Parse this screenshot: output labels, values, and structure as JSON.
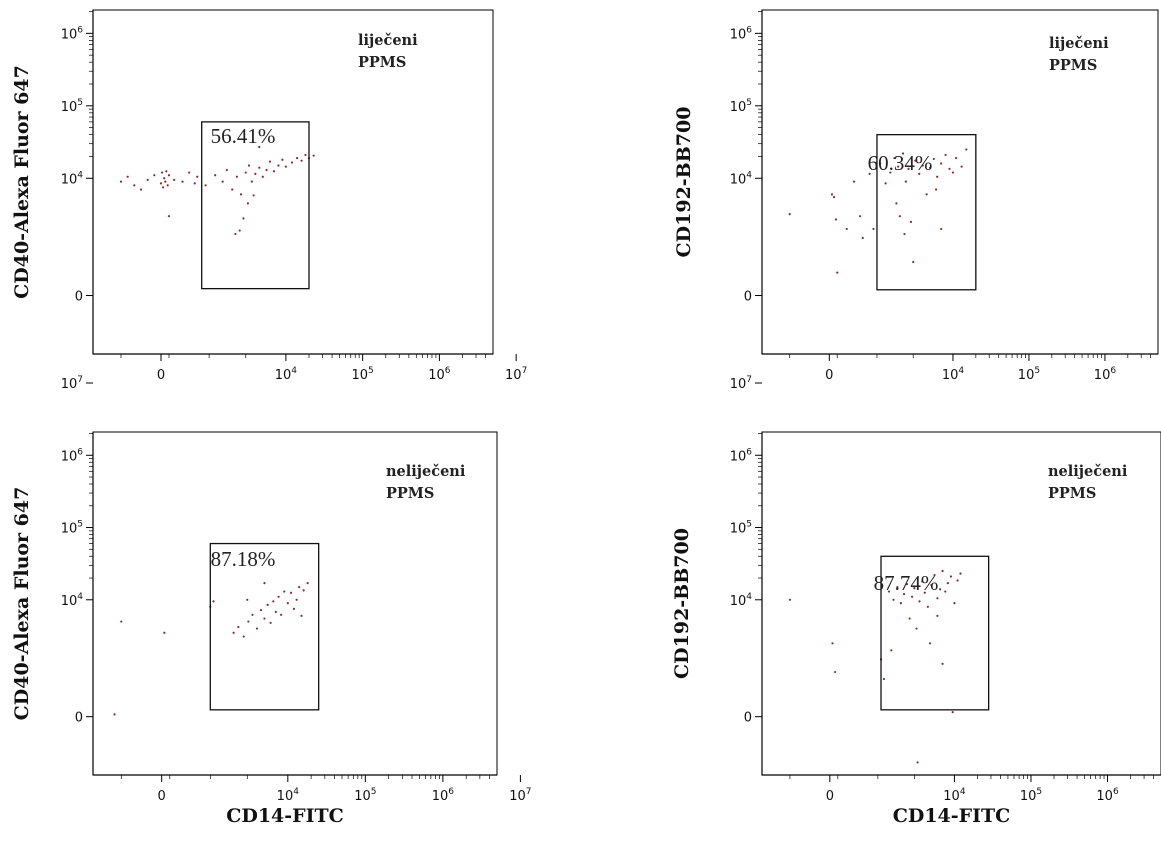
{
  "chart_data": [
    {
      "type": "scatter",
      "panel": "top-left",
      "ylabel": "CD40-Alexa Fluor 647",
      "xlabel": "",
      "annotation": [
        "liječeni",
        "PPMS"
      ],
      "gate_label": "56.41%",
      "gate": {
        "x": [
          800,
          20000
        ],
        "y": [
          300,
          60000
        ]
      },
      "scale": "biexponential",
      "x_ticks": [
        {
          "base": "0",
          "exp": ""
        },
        {
          "base": "10",
          "exp": "4"
        },
        {
          "base": "10",
          "exp": "5"
        },
        {
          "base": "10",
          "exp": "6"
        },
        {
          "base": "10",
          "exp": "7"
        }
      ],
      "y_ticks": [
        {
          "base": "0",
          "exp": ""
        },
        {
          "base": "10",
          "exp": "4"
        },
        {
          "base": "10",
          "exp": "5"
        },
        {
          "base": "10",
          "exp": "6"
        },
        {
          "base": "10",
          "exp": "7"
        }
      ],
      "points": [
        [
          -300,
          9000
        ],
        [
          -250,
          10500
        ],
        [
          -200,
          8000
        ],
        [
          -150,
          7000
        ],
        [
          -100,
          9500
        ],
        [
          -50,
          11000
        ],
        [
          0,
          8500
        ],
        [
          40,
          12000
        ],
        [
          80,
          7500
        ],
        [
          120,
          10000
        ],
        [
          160,
          9000
        ],
        [
          200,
          12500
        ],
        [
          250,
          8000
        ],
        [
          300,
          11000
        ],
        [
          350,
          9500
        ],
        [
          450,
          9000
        ],
        [
          550,
          12000
        ],
        [
          650,
          8500
        ],
        [
          700,
          10500
        ],
        [
          300,
          3000
        ],
        [
          900,
          8000
        ],
        [
          1200,
          11000
        ],
        [
          1500,
          9000
        ],
        [
          1700,
          13000
        ],
        [
          2000,
          7000
        ],
        [
          2300,
          10500
        ],
        [
          2600,
          6000
        ],
        [
          3000,
          12000
        ],
        [
          3300,
          15000
        ],
        [
          3600,
          9000
        ],
        [
          4000,
          11500
        ],
        [
          4500,
          14000
        ],
        [
          5000,
          10500
        ],
        [
          5600,
          13000
        ],
        [
          6200,
          17000
        ],
        [
          7000,
          12500
        ],
        [
          8000,
          15000
        ],
        [
          9000,
          18000
        ],
        [
          10000,
          14500
        ],
        [
          12000,
          16500
        ],
        [
          14000,
          19000
        ],
        [
          16000,
          17500
        ],
        [
          18000,
          21000
        ],
        [
          20000,
          19000
        ],
        [
          23000,
          20500
        ],
        [
          2200,
          1700
        ],
        [
          2500,
          1900
        ],
        [
          2800,
          2800
        ],
        [
          3200,
          4500
        ],
        [
          3800,
          5800
        ],
        [
          4500,
          27000
        ]
      ]
    },
    {
      "type": "scatter",
      "panel": "top-right",
      "ylabel": "CD192-BB700",
      "xlabel": "",
      "annotation": [
        "liječeni",
        "PPMS"
      ],
      "gate_label": "60.34%",
      "gate": {
        "x": [
          1000,
          20000
        ],
        "y": [
          250,
          40000
        ]
      },
      "scale": "biexponential",
      "x_ticks": [
        {
          "base": "0",
          "exp": ""
        },
        {
          "base": "10",
          "exp": "4"
        },
        {
          "base": "10",
          "exp": "5"
        },
        {
          "base": "10",
          "exp": "6"
        },
        {
          "base": "10",
          "exp": "7"
        }
      ],
      "y_ticks": [
        {
          "base": "0",
          "exp": ""
        },
        {
          "base": "10",
          "exp": "4"
        },
        {
          "base": "10",
          "exp": "5"
        },
        {
          "base": "10",
          "exp": "6"
        },
        {
          "base": "10",
          "exp": "7"
        }
      ],
      "points": [
        [
          -300,
          3200
        ],
        [
          100,
          6000
        ],
        [
          180,
          5500
        ],
        [
          250,
          2700
        ],
        [
          300,
          500
        ],
        [
          400,
          2000
        ],
        [
          500,
          9000
        ],
        [
          600,
          3000
        ],
        [
          650,
          1500
        ],
        [
          800,
          11500
        ],
        [
          900,
          2000
        ],
        [
          1100,
          16000
        ],
        [
          1300,
          8500
        ],
        [
          1500,
          12000
        ],
        [
          1700,
          19000
        ],
        [
          1900,
          14500
        ],
        [
          2000,
          3000
        ],
        [
          2200,
          22000
        ],
        [
          2400,
          9000
        ],
        [
          2600,
          13500
        ],
        [
          2800,
          2500
        ],
        [
          3200,
          17500
        ],
        [
          3600,
          11500
        ],
        [
          4000,
          15000
        ],
        [
          4500,
          6000
        ],
        [
          5000,
          14000
        ],
        [
          5600,
          18500
        ],
        [
          6200,
          10500
        ],
        [
          7000,
          16000
        ],
        [
          8000,
          21000
        ],
        [
          9000,
          13500
        ],
        [
          10000,
          12000
        ],
        [
          11000,
          19000
        ],
        [
          13000,
          14500
        ],
        [
          15000,
          25000
        ],
        [
          2300,
          1700
        ],
        [
          1800,
          4500
        ],
        [
          7000,
          2000
        ],
        [
          6000,
          7000
        ],
        [
          3000,
          700
        ]
      ]
    },
    {
      "type": "scatter",
      "panel": "bottom-left",
      "ylabel": "CD40-Alexa Fluor 647",
      "xlabel": "CD14-FITC",
      "annotation": [
        "neliječeni",
        "PPMS"
      ],
      "gate_label": "87.18%",
      "gate": {
        "x": [
          1000,
          25000
        ],
        "y": [
          300,
          60000
        ]
      },
      "scale": "biexponential",
      "x_ticks": [
        {
          "base": "0",
          "exp": ""
        },
        {
          "base": "10",
          "exp": "4"
        },
        {
          "base": "10",
          "exp": "5"
        },
        {
          "base": "10",
          "exp": "6"
        },
        {
          "base": "10",
          "exp": "7"
        }
      ],
      "y_ticks": [
        {
          "base": "0",
          "exp": ""
        },
        {
          "base": "10",
          "exp": "4"
        },
        {
          "base": "10",
          "exp": "5"
        },
        {
          "base": "10",
          "exp": "6"
        },
        {
          "base": "10",
          "exp": "7"
        }
      ],
      "points": [
        [
          -300,
          5000
        ],
        [
          -350,
          100
        ],
        [
          100,
          3500
        ],
        [
          1000,
          8000
        ],
        [
          1100,
          9500
        ],
        [
          2000,
          3500
        ],
        [
          2300,
          4200
        ],
        [
          2700,
          3100
        ],
        [
          3100,
          5000
        ],
        [
          3500,
          6200
        ],
        [
          4000,
          4000
        ],
        [
          4500,
          7200
        ],
        [
          5000,
          5500
        ],
        [
          5500,
          8500
        ],
        [
          6000,
          4800
        ],
        [
          6500,
          9500
        ],
        [
          7000,
          6800
        ],
        [
          7600,
          11000
        ],
        [
          8200,
          6200
        ],
        [
          9000,
          13000
        ],
        [
          10000,
          9000
        ],
        [
          11000,
          12500
        ],
        [
          12000,
          7500
        ],
        [
          13000,
          10000
        ],
        [
          14000,
          15000
        ],
        [
          15000,
          6000
        ],
        [
          16000,
          13500
        ],
        [
          18000,
          17000
        ],
        [
          5000,
          17000
        ],
        [
          3000,
          10000
        ]
      ]
    },
    {
      "type": "scatter",
      "panel": "bottom-right",
      "ylabel": "CD192-BB700",
      "xlabel": "CD14-FITC",
      "annotation": [
        "neliječeni",
        "PPMS"
      ],
      "gate_label": "87.74%",
      "gate": {
        "x": [
          1100,
          28000
        ],
        "y": [
          300,
          40000
        ]
      },
      "scale": "biexponential",
      "x_ticks": [
        {
          "base": "0",
          "exp": ""
        },
        {
          "base": "10",
          "exp": "4"
        },
        {
          "base": "10",
          "exp": "5"
        },
        {
          "base": "10",
          "exp": "6"
        },
        {
          "base": "10",
          "exp": "7"
        }
      ],
      "y_ticks": [
        {
          "base": "0",
          "exp": ""
        },
        {
          "base": "10",
          "exp": "4"
        },
        {
          "base": "10",
          "exp": "5"
        },
        {
          "base": "10",
          "exp": "6"
        },
        {
          "base": "10",
          "exp": "7"
        }
      ],
      "points": [
        [
          -300,
          10000
        ],
        [
          100,
          2500
        ],
        [
          200,
          1000
        ],
        [
          1100,
          1500
        ],
        [
          1200,
          800
        ],
        [
          1400,
          13000
        ],
        [
          1600,
          10000
        ],
        [
          1800,
          15000
        ],
        [
          2000,
          9000
        ],
        [
          2200,
          12000
        ],
        [
          2400,
          16500
        ],
        [
          2600,
          5500
        ],
        [
          2800,
          11000
        ],
        [
          3000,
          14500
        ],
        [
          3200,
          4000
        ],
        [
          3500,
          9500
        ],
        [
          3800,
          18000
        ],
        [
          4100,
          12500
        ],
        [
          4500,
          8000
        ],
        [
          5000,
          16000
        ],
        [
          5500,
          22000
        ],
        [
          6000,
          10500
        ],
        [
          6500,
          14000
        ],
        [
          7000,
          25000
        ],
        [
          7600,
          13000
        ],
        [
          8200,
          17000
        ],
        [
          9000,
          21000
        ],
        [
          10000,
          9000
        ],
        [
          11000,
          18500
        ],
        [
          12000,
          23000
        ],
        [
          3300,
          -400
        ],
        [
          7000,
          1300
        ],
        [
          9500,
          200
        ],
        [
          4800,
          2500
        ],
        [
          6000,
          6000
        ],
        [
          1500,
          2000
        ]
      ]
    }
  ]
}
